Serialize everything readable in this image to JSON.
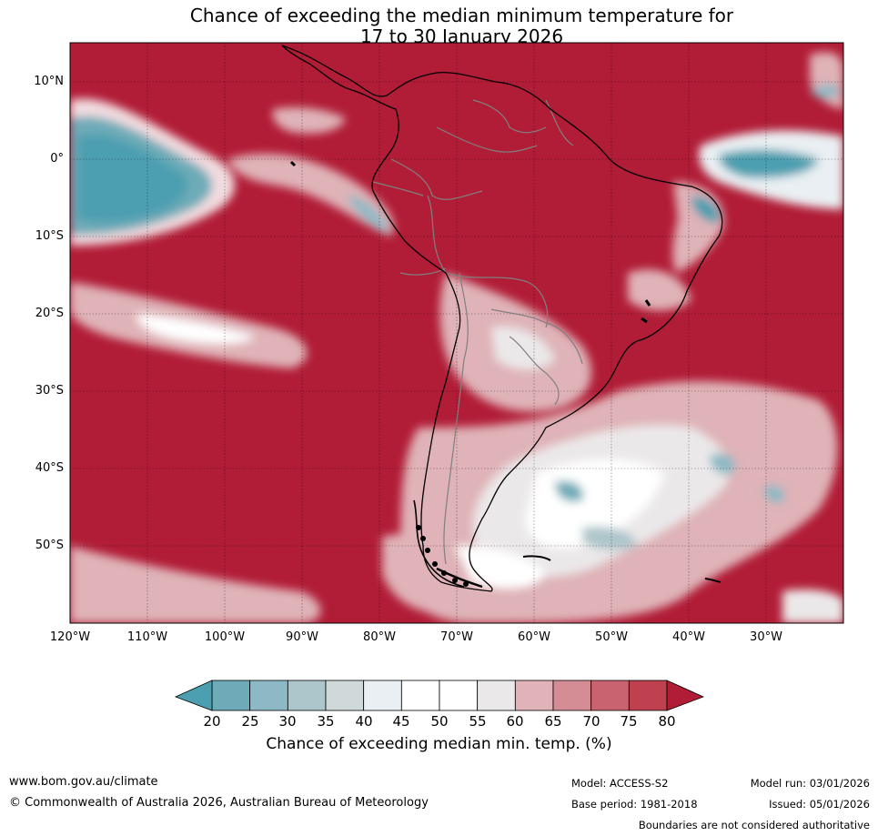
{
  "title": {
    "line1": "Chance of exceeding the median minimum temperature for",
    "line2": "17 to 30 January 2026"
  },
  "map": {
    "lat_labels": [
      "10°N",
      "0°",
      "10°S",
      "20°S",
      "30°S",
      "40°S",
      "50°S"
    ],
    "lon_labels": [
      "120°W",
      "110°W",
      "100°W",
      "90°W",
      "80°W",
      "70°W",
      "60°W",
      "50°W",
      "40°W",
      "30°W"
    ],
    "ocean_color": "#b11c36",
    "land_outline_color": "#000000",
    "border_color": "#808080"
  },
  "colorbar": {
    "ticks": [
      "20",
      "25",
      "30",
      "35",
      "40",
      "45",
      "50",
      "55",
      "60",
      "65",
      "70",
      "75",
      "80"
    ],
    "colors": [
      "#4b9fb0",
      "#6eabb8",
      "#8cb9c5",
      "#adc6cb",
      "#d0d9d9",
      "#e9eff2",
      "#ffffff",
      "#ffffff",
      "#ebe8e9",
      "#dfb3b8",
      "#d48c95",
      "#c8636f",
      "#bf404e",
      "#b11c36"
    ],
    "label": "Chance of exceeding median min. temp. (%)"
  },
  "footer": {
    "url": "www.bom.gov.au/climate",
    "copyright": "© Commonwealth of Australia 2026, Australian Bureau of Meteorology",
    "model": "Model: ACCESS-S2",
    "base_period": "Base period: 1981-2018",
    "model_run": "Model run: 03/01/2026",
    "issued": "Issued: 05/01/2026",
    "disclaimer": "Boundaries are not considered authoritative"
  }
}
